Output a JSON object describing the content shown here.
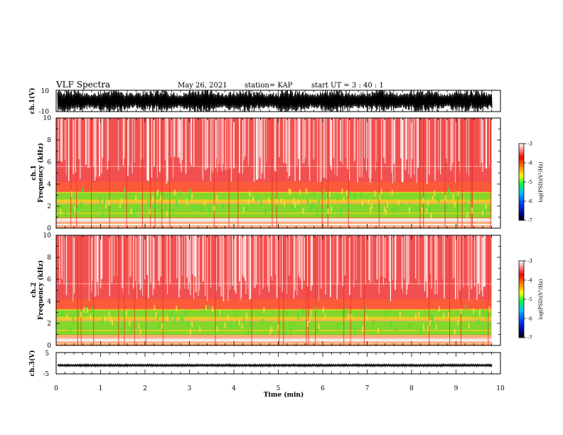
{
  "header": {
    "title": "VLF Spectra",
    "date": "May 26, 2021",
    "station": "station= KAP",
    "start": "start  UT  =   3  : 40 : 1"
  },
  "chart_data": [
    {
      "type": "line",
      "name": "ch1-waveform",
      "ylabel": "ch.1(V)",
      "ylim": [
        -10,
        10
      ],
      "yticks": [
        "10",
        "-10"
      ],
      "xlim": [
        0,
        10
      ]
    },
    {
      "type": "heatmap",
      "name": "ch1-spectrogram",
      "ylabel": "ch.1\nFrequency  (kHz)",
      "ylim": [
        0,
        10
      ],
      "yticks": [
        "0",
        "2",
        "4",
        "6",
        "8",
        "10"
      ],
      "xlim": [
        0,
        10
      ],
      "data_end_min": 9.8,
      "colorbar": {
        "label": "log(PSD)(V²/Hz)",
        "range": [
          -7,
          -3
        ],
        "ticks": [
          "-3",
          "-4",
          "-5",
          "-6",
          "-7"
        ]
      }
    },
    {
      "type": "heatmap",
      "name": "ch2-spectrogram",
      "ylabel": "ch.2\nFrequency  (kHz)",
      "ylim": [
        0,
        10
      ],
      "yticks": [
        "0",
        "2",
        "4",
        "6",
        "8",
        "10"
      ],
      "xlim": [
        0,
        10
      ],
      "data_end_min": 9.8,
      "colorbar": {
        "label": "log(PSD)(V²/Hz)",
        "range": [
          -7,
          -3
        ],
        "ticks": [
          "-3",
          "-4",
          "-5",
          "-6",
          "-7"
        ]
      }
    },
    {
      "type": "line",
      "name": "ch3-waveform",
      "ylabel": "ch.3(V)",
      "ylim": [
        -5,
        5
      ],
      "yticks": [
        "5",
        "-5"
      ],
      "xlim": [
        0,
        10
      ],
      "level": -1
    }
  ],
  "xaxis": {
    "label": "Time  (min)",
    "ticks": [
      "0",
      "1",
      "2",
      "3",
      "4",
      "5",
      "6",
      "7",
      "8",
      "9",
      "10"
    ]
  }
}
